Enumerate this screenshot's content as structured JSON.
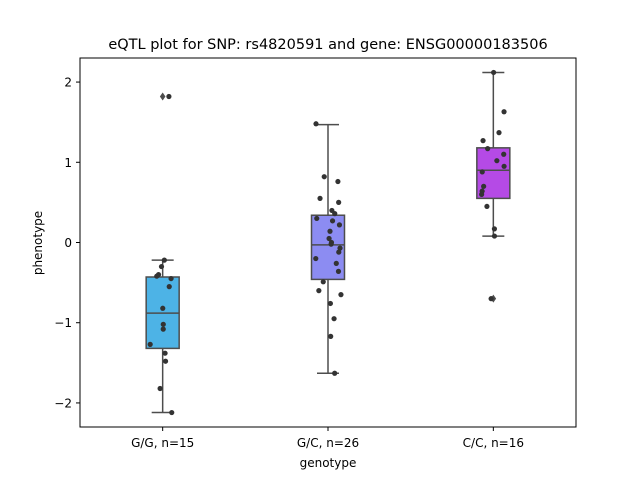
{
  "chart_data": {
    "type": "box",
    "title": "eQTL plot for SNP: rs4820591 and gene: ENSG00000183506",
    "xlabel": "genotype",
    "ylabel": "phenotype",
    "ylim": [
      -2.3,
      2.3
    ],
    "yticks": [
      -2,
      -1,
      0,
      1,
      2
    ],
    "ytick_labels": [
      "−2",
      "−1",
      "0",
      "1",
      "2"
    ],
    "grid": false,
    "categories": [
      "G/G, n=15",
      "G/C, n=26",
      "C/C, n=16"
    ],
    "boxes": [
      {
        "category": "G/G, n=15",
        "color": "#4db3e6",
        "q1": -1.32,
        "median": -0.88,
        "q3": -0.43,
        "whisker_low": -2.12,
        "whisker_high": -0.22,
        "outliers": [
          1.82
        ],
        "points": [
          1.82,
          -0.22,
          -0.3,
          -0.42,
          -0.45,
          -0.55,
          -0.82,
          -1.02,
          -1.08,
          -1.27,
          -1.38,
          -1.48,
          -1.82,
          -2.12,
          -0.4
        ]
      },
      {
        "category": "G/C, n=26",
        "color": "#8c8cf2",
        "q1": -0.46,
        "median": -0.03,
        "q3": 0.34,
        "whisker_low": -1.63,
        "whisker_high": 1.47,
        "outliers": [],
        "points": [
          1.48,
          0.82,
          0.76,
          0.55,
          0.5,
          0.4,
          0.36,
          0.3,
          0.27,
          0.22,
          0.14,
          0.05,
          0.0,
          -0.02,
          -0.07,
          -0.12,
          -0.2,
          -0.26,
          -0.36,
          -0.49,
          -0.6,
          -0.65,
          -0.76,
          -0.95,
          -1.17,
          -1.63
        ]
      },
      {
        "category": "C/C, n=16",
        "color": "#b54ae6",
        "q1": 0.55,
        "median": 0.9,
        "q3": 1.18,
        "whisker_low": 0.08,
        "whisker_high": 2.12,
        "outliers": [
          -0.7
        ],
        "points": [
          2.12,
          1.63,
          1.37,
          1.27,
          1.17,
          1.1,
          1.02,
          0.95,
          0.88,
          0.7,
          0.64,
          0.6,
          0.45,
          0.17,
          0.08,
          -0.7
        ]
      }
    ]
  }
}
